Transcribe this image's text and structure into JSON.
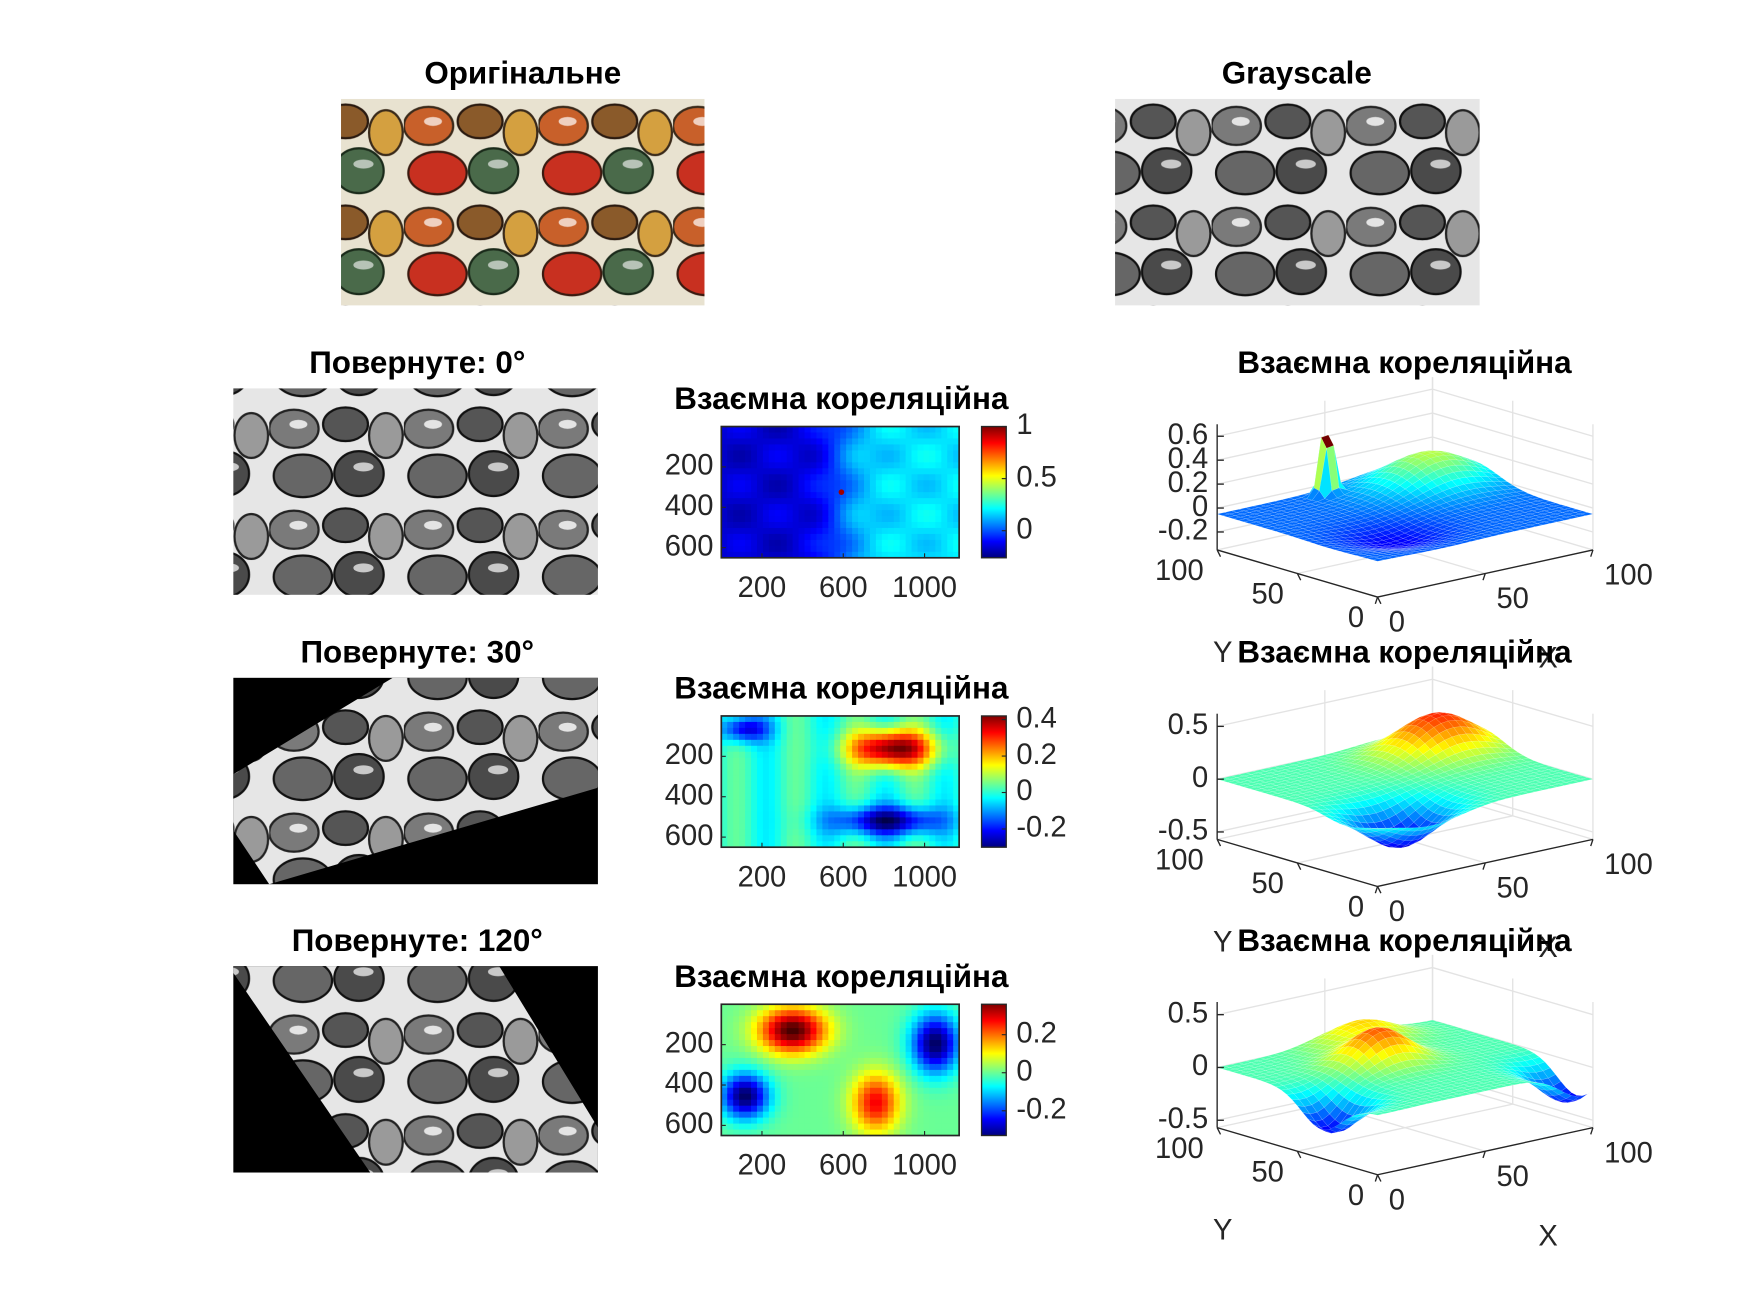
{
  "chart_data": [
    {
      "type": "image",
      "title": "Оригінальне",
      "mode": "color"
    },
    {
      "type": "image",
      "title": "Grayscale",
      "mode": "gray"
    },
    {
      "type": "image",
      "title": "Повернуте: 0°",
      "mode": "gray",
      "rotation": 0
    },
    {
      "type": "heatmap",
      "title": "Взаємна кореляційна",
      "xlim": [
        0,
        1170
      ],
      "xticks": [
        200,
        600,
        1000
      ],
      "ylim": [
        0,
        650
      ],
      "yticks": [
        200,
        400,
        600
      ],
      "y_reversed": true,
      "clim": [
        -0.26,
        1
      ],
      "cticks": [
        0,
        0.5,
        1
      ],
      "colormap": "jet"
    },
    {
      "type": "surface",
      "title": "Взаємна кореляційна",
      "xlabel": "X",
      "ylabel": "Y",
      "xlim": [
        0,
        100
      ],
      "xticks": [
        0,
        50,
        100
      ],
      "ylim": [
        0,
        100
      ],
      "yticks": [
        0,
        50,
        100
      ],
      "zlim": [
        -0.35,
        0.7
      ],
      "zticks": [
        -0.2,
        0,
        0.2,
        0.4,
        0.6
      ],
      "colormap": "jet",
      "grid": true
    },
    {
      "type": "image",
      "title": "Повернуте: 30°",
      "mode": "gray",
      "rotation": 30
    },
    {
      "type": "heatmap",
      "title": "Взаємна кореляційна",
      "xlim": [
        0,
        1170
      ],
      "xticks": [
        200,
        600,
        1000
      ],
      "ylim": [
        0,
        650
      ],
      "yticks": [
        200,
        400,
        600
      ],
      "y_reversed": true,
      "clim": [
        -0.3,
        0.42
      ],
      "cticks": [
        -0.2,
        0,
        0.2,
        0.4
      ],
      "colormap": "jet"
    },
    {
      "type": "surface",
      "title": "Взаємна кореляційна",
      "xlabel": "X",
      "ylabel": "Y",
      "xlim": [
        0,
        100
      ],
      "xticks": [
        0,
        50,
        100
      ],
      "ylim": [
        0,
        100
      ],
      "yticks": [
        0,
        50,
        100
      ],
      "zlim": [
        -0.57,
        0.62
      ],
      "zticks": [
        -0.5,
        0,
        0.5
      ],
      "colormap": "jet",
      "grid": true
    },
    {
      "type": "image",
      "title": "Повернуте: 120°",
      "mode": "gray",
      "rotation": 120
    },
    {
      "type": "heatmap",
      "title": "Взаємна кореляційна",
      "xlim": [
        0,
        1170
      ],
      "xticks": [
        200,
        600,
        1000
      ],
      "ylim": [
        0,
        650
      ],
      "yticks": [
        200,
        400,
        600
      ],
      "y_reversed": true,
      "clim": [
        -0.33,
        0.36
      ],
      "cticks": [
        -0.2,
        0,
        0.2
      ],
      "colormap": "jet"
    },
    {
      "type": "surface",
      "title": "Взаємна кореляційна",
      "xlabel": "X",
      "ylabel": "Y",
      "xlim": [
        0,
        100
      ],
      "xticks": [
        0,
        50,
        100
      ],
      "ylim": [
        0,
        100
      ],
      "yticks": [
        0,
        50,
        100
      ],
      "zlim": [
        -0.57,
        0.62
      ],
      "zticks": [
        -0.5,
        0,
        0.5
      ],
      "colormap": "jet",
      "grid": true
    }
  ]
}
